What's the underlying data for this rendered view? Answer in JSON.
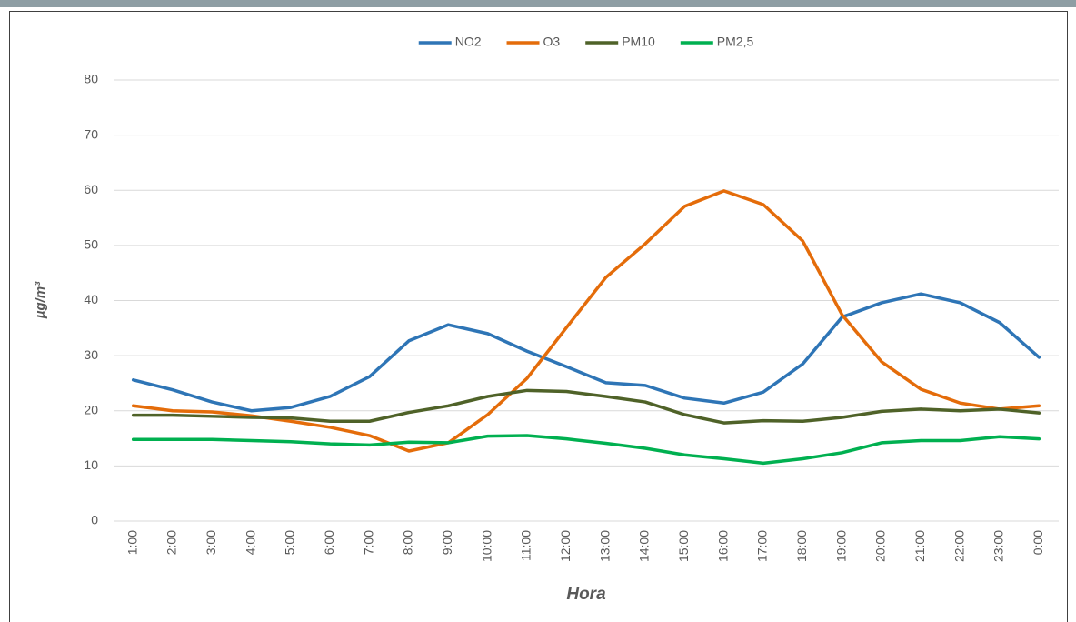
{
  "chart_data": {
    "type": "line",
    "x_label": "Hora",
    "y_label": "µg/m³",
    "categories": [
      "1:00",
      "2:00",
      "3:00",
      "4:00",
      "5:00",
      "6:00",
      "7:00",
      "8:00",
      "9:00",
      "10:00",
      "11:00",
      "12:00",
      "13:00",
      "14:00",
      "15:00",
      "16:00",
      "17:00",
      "18:00",
      "19:00",
      "20:00",
      "21:00",
      "22:00",
      "23:00",
      "0:00"
    ],
    "series": [
      {
        "name": "NO2",
        "color": "#2e75b6",
        "values": [
          25.6,
          23.8,
          21.6,
          20.0,
          20.6,
          22.6,
          26.2,
          32.7,
          35.6,
          34.0,
          30.8,
          28.0,
          25.1,
          24.6,
          22.3,
          21.4,
          23.4,
          28.5,
          37.0,
          39.6,
          41.2,
          39.6,
          36.0,
          29.7
        ]
      },
      {
        "name": "O3",
        "color": "#e46c0a",
        "values": [
          20.9,
          20.0,
          19.8,
          19.1,
          18.1,
          17.0,
          15.5,
          12.7,
          14.2,
          19.3,
          25.9,
          35.1,
          44.2,
          50.3,
          57.1,
          59.9,
          57.4,
          50.8,
          37.4,
          28.9,
          23.9,
          21.4,
          20.3,
          20.9
        ]
      },
      {
        "name": "PM10",
        "color": "#4f6228",
        "values": [
          19.2,
          19.2,
          19.0,
          18.8,
          18.7,
          18.1,
          18.1,
          19.7,
          20.9,
          22.6,
          23.7,
          23.5,
          22.6,
          21.6,
          19.3,
          17.8,
          18.2,
          18.1,
          18.8,
          19.9,
          20.3,
          20.0,
          20.3,
          19.6
        ]
      },
      {
        "name": "PM2,5",
        "color": "#00b050",
        "values": [
          14.8,
          14.8,
          14.8,
          14.6,
          14.4,
          14.0,
          13.8,
          14.3,
          14.2,
          15.4,
          15.5,
          14.9,
          14.1,
          13.2,
          12.0,
          11.3,
          10.5,
          11.3,
          12.4,
          14.2,
          14.6,
          14.6,
          15.3,
          14.9
        ]
      }
    ],
    "ylim": [
      0,
      80
    ],
    "yticks": [
      0,
      10,
      20,
      30,
      40,
      50,
      60,
      70,
      80
    ],
    "grid": true,
    "legend": "top"
  }
}
